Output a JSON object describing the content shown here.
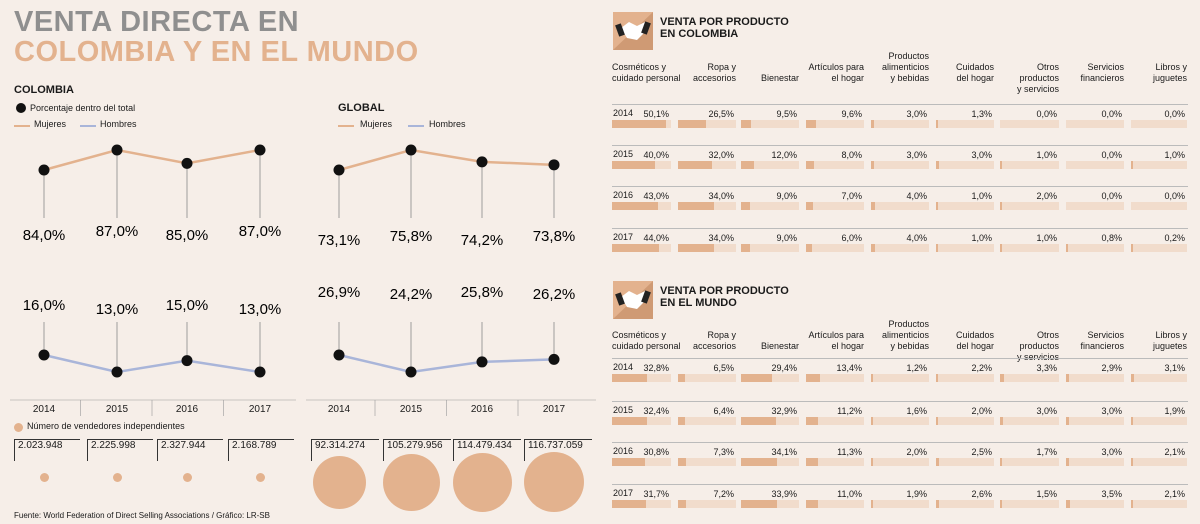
{
  "title_line1": "VENTA DIRECTA EN",
  "title_line2": "COLOMBIA Y EN EL MUNDO",
  "colors": {
    "accent": "#e3b28e",
    "men": "#a9b5d9",
    "title_gray": "#8f8f8f",
    "bar_light": "#f1dccc"
  },
  "colombia": {
    "label": "COLOMBIA",
    "legend_pct": "Porcentaje dentro del total",
    "legend_women": "Mujeres",
    "legend_men": "Hombres"
  },
  "global": {
    "label": "GLOBAL",
    "legend_women": "Mujeres",
    "legend_men": "Hombres"
  },
  "legend_vendors": "Número de vendedores independientes",
  "source": "Fuente:  World Federation of Direct Selling Associations / Gráfico: LR-SB",
  "chart_data": [
    {
      "type": "line",
      "title": "Colombia - Porcentaje dentro del total",
      "categories": [
        "2014",
        "2015",
        "2016",
        "2017"
      ],
      "series": [
        {
          "name": "Mujeres",
          "values": [
            84.0,
            87.0,
            85.0,
            87.0
          ],
          "labels": [
            "84,0%",
            "87,0%",
            "85,0%",
            "87,0%"
          ]
        },
        {
          "name": "Hombres",
          "values": [
            16.0,
            13.0,
            15.0,
            13.0
          ],
          "labels": [
            "16,0%",
            "13,0%",
            "15,0%",
            "13,0%"
          ]
        }
      ],
      "vendors": [
        "2.023.948",
        "2.225.998",
        "2.327.944",
        "2.168.789"
      ],
      "vendors_numeric": [
        2023948,
        2225998,
        2327944,
        2168789
      ]
    },
    {
      "type": "line",
      "title": "Global - Porcentaje dentro del total",
      "categories": [
        "2014",
        "2015",
        "2016",
        "2017"
      ],
      "series": [
        {
          "name": "Mujeres",
          "values": [
            73.1,
            75.8,
            74.2,
            73.8
          ],
          "labels": [
            "73,1%",
            "75,8%",
            "74,2%",
            "73,8%"
          ]
        },
        {
          "name": "Hombres",
          "values": [
            26.9,
            24.2,
            25.8,
            26.2
          ],
          "labels": [
            "26,9%",
            "24,2%",
            "25,8%",
            "26,2%"
          ]
        }
      ],
      "vendors": [
        "92.314.274",
        "105.279.956",
        "114.479.434",
        "116.737.059"
      ],
      "vendors_numeric": [
        92314274,
        105279956,
        114479434,
        116737059
      ]
    },
    {
      "type": "table",
      "title": "VENTA POR PRODUCTO EN COLOMBIA",
      "title_lines": [
        "VENTA POR PRODUCTO",
        "EN COLOMBIA"
      ],
      "headers": [
        [
          "Cosméticos y",
          "cuidado personal"
        ],
        [
          "Ropa y",
          "accesorios"
        ],
        [
          "Bienestar"
        ],
        [
          "Artículos para",
          "el hogar"
        ],
        [
          "Productos",
          "alimenticios",
          "y bebidas"
        ],
        [
          "Cuidados",
          "del hogar"
        ],
        [
          "Otros productos",
          "y servicios"
        ],
        [
          "Servicios",
          "financieros"
        ],
        [
          "Libros y",
          "juguetes"
        ]
      ],
      "rows": [
        {
          "year": "2014",
          "labels": [
            "50,1%",
            "26,5%",
            "9,5%",
            "9,6%",
            "3,0%",
            "1,3%",
            "0,0%",
            "0,0%",
            "0,0%"
          ],
          "values": [
            50.1,
            26.5,
            9.5,
            9.6,
            3.0,
            1.3,
            0.0,
            0.0,
            0.0
          ]
        },
        {
          "year": "2015",
          "labels": [
            "40,0%",
            "32,0%",
            "12,0%",
            "8,0%",
            "3,0%",
            "3,0%",
            "1,0%",
            "0,0%",
            "1,0%"
          ],
          "values": [
            40.0,
            32.0,
            12.0,
            8.0,
            3.0,
            3.0,
            1.0,
            0.0,
            1.0
          ]
        },
        {
          "year": "2016",
          "labels": [
            "43,0%",
            "34,0%",
            "9,0%",
            "7,0%",
            "4,0%",
            "1,0%",
            "2,0%",
            "0,0%",
            "0,0%"
          ],
          "values": [
            43.0,
            34.0,
            9.0,
            7.0,
            4.0,
            1.0,
            2.0,
            0.0,
            0.0
          ]
        },
        {
          "year": "2017",
          "labels": [
            "44,0%",
            "34,0%",
            "9,0%",
            "6,0%",
            "4,0%",
            "1,0%",
            "1,0%",
            "0,8%",
            "0,2%"
          ],
          "values": [
            44.0,
            34.0,
            9.0,
            6.0,
            4.0,
            1.0,
            1.0,
            0.8,
            0.2
          ]
        }
      ]
    },
    {
      "type": "table",
      "title": "VENTA POR PRODUCTO EN EL MUNDO",
      "title_lines": [
        "VENTA POR PRODUCTO",
        "EN EL MUNDO"
      ],
      "headers": [
        [
          "Cosméticos y",
          "cuidado personal"
        ],
        [
          "Ropa y",
          "accesorios"
        ],
        [
          "Bienestar"
        ],
        [
          "Artículos para",
          "el hogar"
        ],
        [
          "Productos",
          "alimenticios",
          "y bebidas"
        ],
        [
          "Cuidados",
          "del hogar"
        ],
        [
          "Otros productos",
          "y servicios"
        ],
        [
          "Servicios",
          "financieros"
        ],
        [
          "Libros y",
          "juguetes"
        ]
      ],
      "rows": [
        {
          "year": "2014",
          "labels": [
            "32,8%",
            "6,5%",
            "29,4%",
            "13,4%",
            "1,2%",
            "2,2%",
            "3,3%",
            "2,9%",
            "3,1%"
          ],
          "values": [
            32.8,
            6.5,
            29.4,
            13.4,
            1.2,
            2.2,
            3.3,
            2.9,
            3.1
          ]
        },
        {
          "year": "2015",
          "labels": [
            "32,4%",
            "6,4%",
            "32,9%",
            "11,2%",
            "1,6%",
            "2,0%",
            "3,0%",
            "3,0%",
            "1,9%"
          ],
          "values": [
            32.4,
            6.4,
            32.9,
            11.2,
            1.6,
            2.0,
            3.0,
            3.0,
            1.9
          ]
        },
        {
          "year": "2016",
          "labels": [
            "30,8%",
            "7,3%",
            "34,1%",
            "11,3%",
            "2,0%",
            "2,5%",
            "1,7%",
            "3,0%",
            "2,1%"
          ],
          "values": [
            30.8,
            7.3,
            34.1,
            11.3,
            2.0,
            2.5,
            1.7,
            3.0,
            2.1
          ]
        },
        {
          "year": "2017",
          "labels": [
            "31,7%",
            "7,2%",
            "33,9%",
            "11,0%",
            "1,9%",
            "2,6%",
            "1,5%",
            "3,5%",
            "2,1%"
          ],
          "values": [
            31.7,
            7.2,
            33.9,
            11.0,
            1.9,
            2.6,
            1.5,
            3.5,
            2.1
          ]
        }
      ]
    }
  ]
}
